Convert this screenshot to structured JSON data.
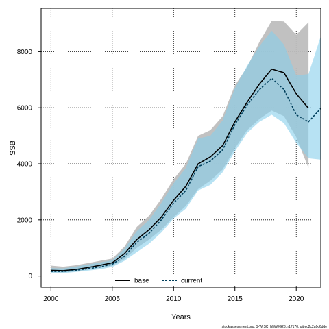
{
  "chart_data": {
    "type": "line",
    "title": "",
    "xlabel": "Years",
    "ylabel": "SSB",
    "xlim": [
      1999.2,
      2022
    ],
    "ylim": [
      -400,
      9550
    ],
    "grid": true,
    "x_ticks": [
      2000,
      2005,
      2010,
      2015,
      2020
    ],
    "y_ticks": [
      0,
      2000,
      4000,
      6000,
      8000
    ],
    "legend": {
      "placement": "bottom",
      "entries": [
        "base",
        "current"
      ]
    },
    "credit": "stockassessment.org, S-WISC_NWWG23, r17170, git:ec2c2a0c6dde",
    "series": [
      {
        "name": "base",
        "style": "solid",
        "color": "#000000",
        "band_color": "#bebebe",
        "x": [
          2000,
          2001,
          2002,
          2003,
          2004,
          2005,
          2006,
          2007,
          2008,
          2009,
          2010,
          2011,
          2012,
          2013,
          2014,
          2015,
          2016,
          2017,
          2018,
          2019,
          2020,
          2021
        ],
        "y": [
          200,
          190,
          230,
          300,
          380,
          470,
          800,
          1300,
          1650,
          2100,
          2700,
          3200,
          4000,
          4250,
          4650,
          5500,
          6200,
          6850,
          7380,
          7250,
          6500,
          5980
        ],
        "lower": [
          130,
          125,
          160,
          220,
          290,
          370,
          600,
          1000,
          1300,
          1650,
          2100,
          2500,
          3100,
          3400,
          3800,
          4550,
          5200,
          5600,
          5900,
          5700,
          4950,
          3850
        ],
        "upper": [
          370,
          330,
          380,
          460,
          540,
          620,
          1050,
          1750,
          2150,
          2750,
          3450,
          4000,
          5000,
          5200,
          5700,
          6800,
          7450,
          8350,
          9100,
          9080,
          8600,
          9050
        ]
      },
      {
        "name": "current",
        "style": "dashed",
        "color": "#003f5c",
        "band_color": "#87ceeb",
        "x": [
          2000,
          2001,
          2002,
          2003,
          2004,
          2005,
          2006,
          2007,
          2008,
          2009,
          2010,
          2011,
          2012,
          2013,
          2014,
          2015,
          2016,
          2017,
          2018,
          2019,
          2020,
          2021,
          2022
        ],
        "y": [
          160,
          160,
          200,
          260,
          320,
          420,
          700,
          1200,
          1520,
          2000,
          2600,
          3050,
          3900,
          4100,
          4500,
          5400,
          6100,
          6650,
          7050,
          6650,
          5750,
          5500,
          5980
        ],
        "lower": [
          100,
          100,
          140,
          190,
          240,
          320,
          540,
          850,
          1150,
          1550,
          2050,
          2400,
          3050,
          3250,
          3700,
          4450,
          5100,
          5500,
          5750,
          5450,
          4750,
          4200,
          4150
        ],
        "upper": [
          280,
          270,
          330,
          410,
          480,
          560,
          970,
          1600,
          2000,
          2600,
          3300,
          3850,
          4900,
          5000,
          5550,
          6700,
          7500,
          8200,
          8750,
          8250,
          7150,
          7200,
          8550
        ]
      }
    ]
  }
}
